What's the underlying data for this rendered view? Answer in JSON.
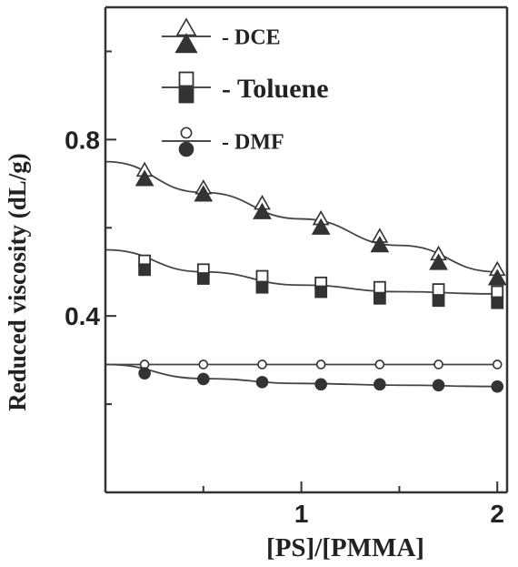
{
  "chart_data": {
    "type": "scatter",
    "title": "",
    "xlabel": "[PS]/[PMMA]",
    "ylabel": "Reduced viscosity (dL/g)",
    "xlim": [
      0.0,
      2.05
    ],
    "ylim": [
      0.0,
      1.1
    ],
    "x_ticks": [
      {
        "value": 1,
        "label": "1"
      },
      {
        "value": 2,
        "label": "2"
      }
    ],
    "y_ticks": [
      {
        "value": 0.4,
        "label": "0.4"
      },
      {
        "value": 0.8,
        "label": "0.8"
      }
    ],
    "grid": false,
    "legend_position": "top",
    "legend": [
      {
        "label": "- DCE",
        "symbol": "triangle"
      },
      {
        "label": "- Toluene",
        "symbol": "square"
      },
      {
        "label": "- DMF",
        "symbol": "circle"
      }
    ],
    "series": [
      {
        "legend_index": 0,
        "marker": "triangle",
        "filled": false,
        "x": [
          0.2,
          0.5,
          0.8,
          1.1,
          1.4,
          1.7,
          2.0
        ],
        "y": [
          0.73,
          0.69,
          0.655,
          0.62,
          0.58,
          0.54,
          0.505
        ]
      },
      {
        "legend_index": 0,
        "marker": "triangle",
        "filled": true,
        "x": [
          0.2,
          0.5,
          0.8,
          1.1,
          1.4,
          1.7,
          2.0
        ],
        "y": [
          0.71,
          0.675,
          0.635,
          0.6,
          0.56,
          0.52,
          0.485
        ]
      },
      {
        "legend_index": 1,
        "marker": "square",
        "filled": false,
        "x": [
          0.2,
          0.5,
          0.8,
          1.1,
          1.4,
          1.7,
          2.0
        ],
        "y": [
          0.525,
          0.505,
          0.49,
          0.475,
          0.465,
          0.46,
          0.455
        ]
      },
      {
        "legend_index": 1,
        "marker": "square",
        "filled": true,
        "x": [
          0.2,
          0.5,
          0.8,
          1.1,
          1.4,
          1.7,
          2.0
        ],
        "y": [
          0.505,
          0.485,
          0.465,
          0.455,
          0.44,
          0.435,
          0.43
        ]
      },
      {
        "legend_index": 2,
        "marker": "circle",
        "filled": false,
        "x": [
          0.2,
          0.5,
          0.8,
          1.1,
          1.4,
          1.7,
          2.0
        ],
        "y": [
          0.29,
          0.29,
          0.29,
          0.29,
          0.29,
          0.29,
          0.29
        ]
      },
      {
        "legend_index": 2,
        "marker": "circle",
        "filled": true,
        "x": [
          0.2,
          0.5,
          0.8,
          1.1,
          1.4,
          1.7,
          2.0
        ],
        "y": [
          0.27,
          0.257,
          0.25,
          0.245,
          0.245,
          0.243,
          0.24
        ]
      }
    ],
    "fit_lines": [
      {
        "x": [
          0.0,
          0.5,
          1.0,
          1.5,
          2.0
        ],
        "y": [
          0.75,
          0.68,
          0.62,
          0.56,
          0.5
        ]
      },
      {
        "x": [
          0.0,
          0.5,
          1.0,
          1.5,
          2.0
        ],
        "y": [
          0.55,
          0.5,
          0.47,
          0.455,
          0.45
        ]
      },
      {
        "x": [
          0.0,
          0.5,
          1.0,
          1.5,
          2.0
        ],
        "y": [
          0.29,
          0.29,
          0.29,
          0.29,
          0.29
        ]
      },
      {
        "x": [
          0.0,
          0.5,
          1.0,
          1.5,
          2.0
        ],
        "y": [
          0.29,
          0.258,
          0.247,
          0.243,
          0.24
        ]
      }
    ]
  }
}
